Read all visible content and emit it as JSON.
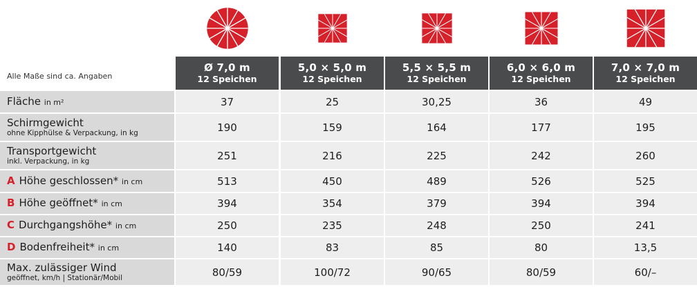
{
  "note": "Alle Maße sind ca. Angaben",
  "accent_color": "#d6202a",
  "columns": [
    {
      "size": "Ø 7,0 m",
      "spokes": "12 Speichen",
      "icon": "round-umbrella-icon"
    },
    {
      "size": "5,0 × 5,0 m",
      "spokes": "12 Speichen",
      "icon": "square-umbrella-icon"
    },
    {
      "size": "5,5 × 5,5 m",
      "spokes": "12 Speichen",
      "icon": "square-umbrella-icon"
    },
    {
      "size": "6,0 × 6,0 m",
      "spokes": "12 Speichen",
      "icon": "square-umbrella-icon"
    },
    {
      "size": "7,0 × 7,0 m",
      "spokes": "12 Speichen",
      "icon": "square-umbrella-icon"
    }
  ],
  "rows": [
    {
      "letter": "",
      "label": "Fläche",
      "unit": "in m²",
      "sub": "",
      "values": [
        "37",
        "25",
        "30,25",
        "36",
        "49"
      ]
    },
    {
      "letter": "",
      "label": "Schirmgewicht",
      "unit": "",
      "sub": "ohne Kipphülse & Verpackung, in kg",
      "values": [
        "190",
        "159",
        "164",
        "177",
        "195"
      ]
    },
    {
      "letter": "",
      "label": "Transportgewicht",
      "unit": "",
      "sub": "inkl. Verpackung, in kg",
      "values": [
        "251",
        "216",
        "225",
        "242",
        "260"
      ]
    },
    {
      "letter": "A",
      "label": "Höhe geschlossen*",
      "unit": "in cm",
      "sub": "",
      "values": [
        "513",
        "450",
        "489",
        "526",
        "525"
      ]
    },
    {
      "letter": "B",
      "label": "Höhe geöffnet*",
      "unit": "in cm",
      "sub": "",
      "values": [
        "394",
        "354",
        "379",
        "394",
        "394"
      ]
    },
    {
      "letter": "C",
      "label": "Durchgangshöhe*",
      "unit": "in cm",
      "sub": "",
      "values": [
        "250",
        "235",
        "248",
        "250",
        "241"
      ]
    },
    {
      "letter": "D",
      "label": "Bodenfreiheit*",
      "unit": "in cm",
      "sub": "",
      "values": [
        "140",
        "83",
        "85",
        "80",
        "13,5"
      ]
    },
    {
      "letter": "",
      "label": "Max. zulässiger Wind",
      "unit": "",
      "sub": "geöffnet, km/h | Stationär/Mobil",
      "values": [
        "80/59",
        "100/72",
        "90/65",
        "80/59",
        "60/–"
      ]
    }
  ]
}
